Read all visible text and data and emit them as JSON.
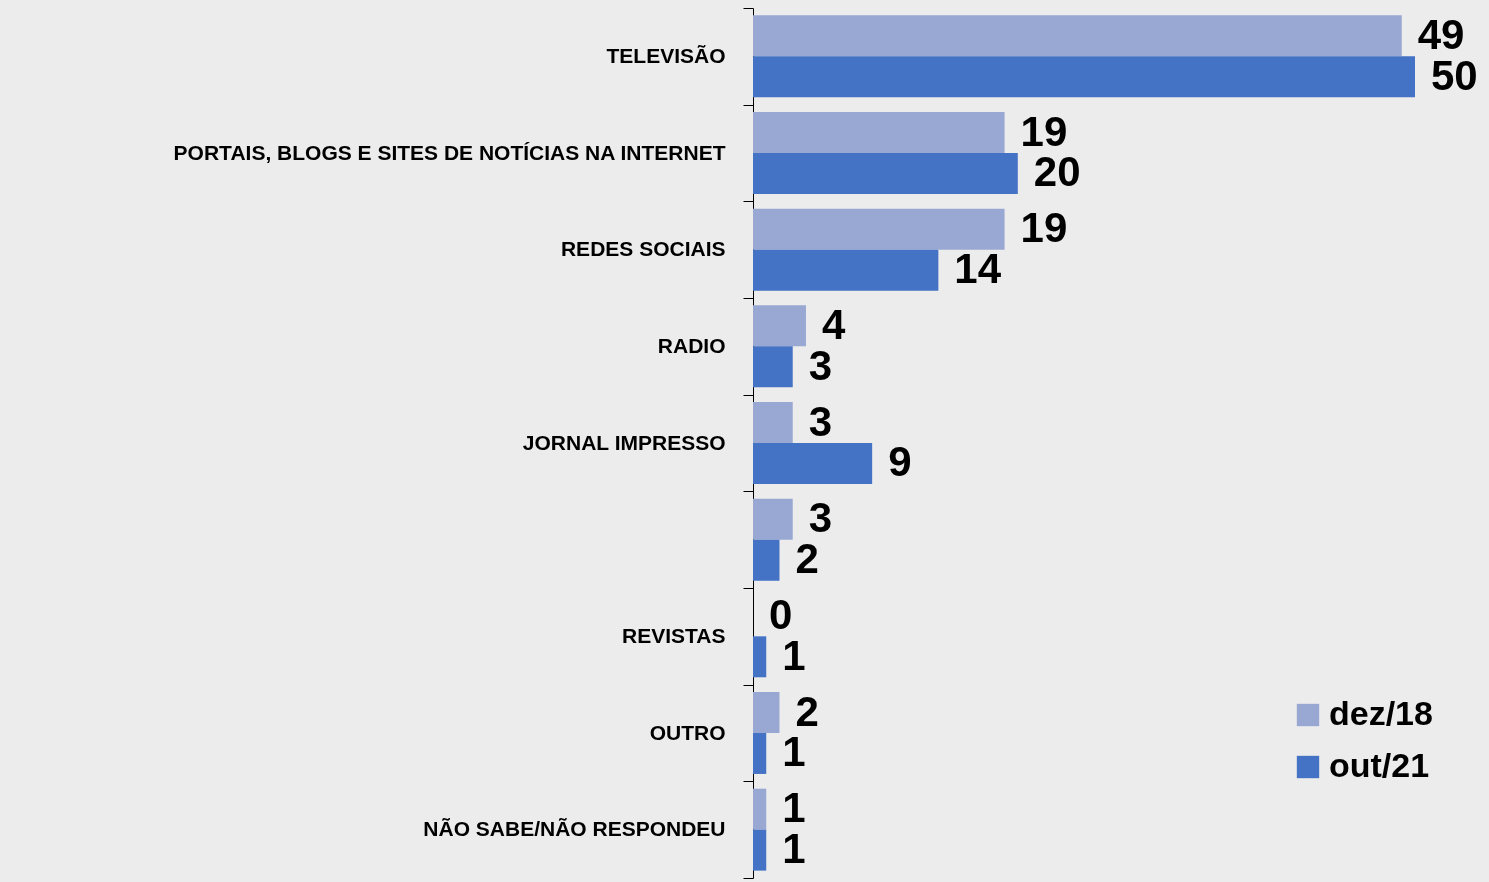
{
  "chart_data": {
    "type": "bar",
    "orientation": "horizontal",
    "categories": [
      "TELEVISÃO",
      "PORTAIS, BLOGS E SITES DE NOTÍCIAS NA INTERNET",
      "REDES SOCIAIS",
      "RADIO",
      "JORNAL IMPRESSO",
      null,
      "REVISTAS",
      "OUTRO",
      "NÃO SABE/NÃO RESPONDEU"
    ],
    "series": [
      {
        "name": "dez/18",
        "color": "#98a8d3",
        "values": [
          49,
          19,
          19,
          4,
          3,
          3,
          0,
          2,
          1
        ]
      },
      {
        "name": "out/21",
        "color": "#4472c4",
        "values": [
          50,
          20,
          14,
          3,
          9,
          2,
          1,
          1,
          1
        ]
      }
    ],
    "data_labels": true,
    "legend": "bottom right"
  }
}
